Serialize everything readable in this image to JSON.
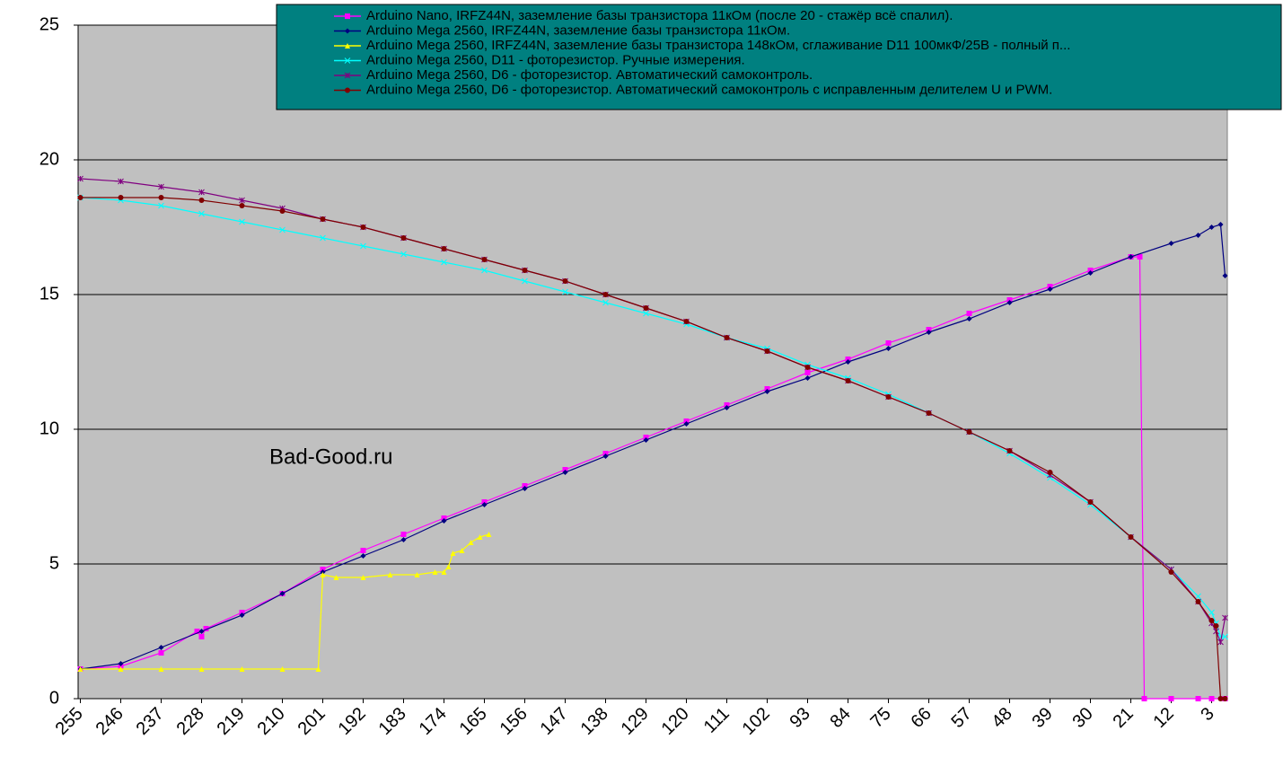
{
  "chart_data": {
    "type": "line",
    "xlim": [
      255.5,
      -0.5
    ],
    "xticks": [
      255,
      246,
      237,
      228,
      219,
      210,
      201,
      192,
      183,
      174,
      165,
      156,
      147,
      138,
      129,
      120,
      111,
      102,
      93,
      84,
      75,
      66,
      57,
      48,
      39,
      30,
      21,
      12,
      3
    ],
    "ylim": [
      0,
      25
    ],
    "yticks": [
      0,
      5,
      10,
      15,
      20,
      25
    ],
    "grid": true,
    "legend": "top-right",
    "annotation": "Bad-Good.ru",
    "series": [
      {
        "name": "Arduino Nano, IRFZ44N, заземление базы транзистора 11кОм (после 20 - стажёр всё спалил).",
        "color": "#ff00ff",
        "marker": "square",
        "x": [
          255,
          246,
          237,
          229,
          228,
          227,
          219,
          210,
          201,
          192,
          183,
          174,
          165,
          156,
          147,
          138,
          129,
          120,
          111,
          102,
          93,
          84,
          75,
          66,
          57,
          48,
          39,
          30,
          21,
          19,
          18,
          12,
          6,
          3,
          0
        ],
        "values": [
          1.1,
          1.2,
          1.7,
          2.5,
          2.3,
          2.6,
          3.2,
          3.9,
          4.8,
          5.5,
          6.1,
          6.7,
          7.3,
          7.9,
          8.5,
          9.1,
          9.7,
          10.3,
          10.9,
          11.5,
          12.1,
          12.6,
          13.2,
          13.7,
          14.3,
          14.8,
          15.3,
          15.9,
          16.4,
          16.4,
          0,
          0,
          0,
          0,
          0
        ]
      },
      {
        "name": "Arduino Mega 2560, IRFZ44N, заземление базы транзистора 11кОм.",
        "color": "#000080",
        "marker": "diamond",
        "x": [
          255,
          246,
          237,
          228,
          219,
          210,
          201,
          192,
          183,
          174,
          165,
          156,
          147,
          138,
          129,
          120,
          111,
          102,
          93,
          84,
          75,
          66,
          57,
          48,
          39,
          30,
          21,
          12,
          6,
          3,
          1,
          0
        ],
        "values": [
          1.1,
          1.3,
          1.9,
          2.5,
          3.1,
          3.9,
          4.7,
          5.3,
          5.9,
          6.6,
          7.2,
          7.8,
          8.4,
          9.0,
          9.6,
          10.2,
          10.8,
          11.4,
          11.9,
          12.5,
          13.0,
          13.6,
          14.1,
          14.7,
          15.2,
          15.8,
          16.4,
          16.9,
          17.2,
          17.5,
          17.6,
          15.7
        ]
      },
      {
        "name": "Arduino Mega 2560, IRFZ44N, заземление базы транзистора 148кОм, сглаживание D11 100мкФ/25В - полный п...",
        "color": "#ffff00",
        "marker": "triangle",
        "x": [
          255,
          246,
          237,
          228,
          219,
          210,
          202,
          201,
          198,
          192,
          186,
          180,
          176,
          174,
          173,
          172,
          170,
          168,
          166,
          164
        ],
        "values": [
          1.1,
          1.1,
          1.1,
          1.1,
          1.1,
          1.1,
          1.1,
          4.6,
          4.5,
          4.5,
          4.6,
          4.6,
          4.7,
          4.7,
          4.9,
          5.4,
          5.5,
          5.8,
          6.0,
          6.1
        ]
      },
      {
        "name": "Arduino Mega 2560, D11 - фоторезистор. Ручные измерения.",
        "color": "#00ffff",
        "marker": "x",
        "x": [
          255,
          246,
          237,
          228,
          219,
          210,
          201,
          192,
          183,
          174,
          165,
          156,
          147,
          138,
          129,
          120,
          111,
          102,
          93,
          84,
          75,
          66,
          57,
          48,
          39,
          30,
          21,
          12,
          6,
          3,
          2,
          1,
          0
        ],
        "values": [
          18.6,
          18.5,
          18.3,
          18.0,
          17.7,
          17.4,
          17.1,
          16.8,
          16.5,
          16.2,
          15.9,
          15.5,
          15.1,
          14.7,
          14.3,
          13.9,
          13.4,
          13.0,
          12.4,
          11.9,
          11.3,
          10.6,
          9.9,
          9.1,
          8.2,
          7.2,
          6.0,
          4.8,
          3.8,
          3.2,
          2.8,
          2.3,
          2.3
        ]
      },
      {
        "name": "Arduino Mega 2560, D6 - фоторезистор. Автоматический самоконтроль.",
        "color": "#800080",
        "marker": "star",
        "x": [
          255,
          246,
          237,
          228,
          219,
          210,
          201,
          192,
          183,
          174,
          165,
          156,
          147,
          138,
          129,
          120,
          111,
          102,
          93,
          84,
          75,
          66,
          57,
          48,
          39,
          30,
          21,
          12,
          6,
          3,
          2,
          1,
          0
        ],
        "values": [
          19.3,
          19.2,
          19.0,
          18.8,
          18.5,
          18.2,
          17.8,
          17.5,
          17.1,
          16.7,
          16.3,
          15.9,
          15.5,
          15.0,
          14.5,
          14.0,
          13.4,
          12.9,
          12.3,
          11.8,
          11.2,
          10.6,
          9.9,
          9.2,
          8.3,
          7.3,
          6.0,
          4.8,
          3.6,
          2.8,
          2.5,
          2.1,
          3.0
        ]
      },
      {
        "name": "Arduino Mega 2560, D6 - фоторезистор. Автоматический самоконтроль с исправленным делителем U и PWM.",
        "color": "#800000",
        "marker": "circle",
        "x": [
          255,
          246,
          237,
          228,
          219,
          210,
          201,
          192,
          183,
          174,
          165,
          156,
          147,
          138,
          129,
          120,
          111,
          102,
          93,
          84,
          75,
          66,
          57,
          48,
          39,
          30,
          21,
          12,
          6,
          3,
          2,
          1,
          0
        ],
        "values": [
          18.6,
          18.6,
          18.6,
          18.5,
          18.3,
          18.1,
          17.8,
          17.5,
          17.1,
          16.7,
          16.3,
          15.9,
          15.5,
          15.0,
          14.5,
          14.0,
          13.4,
          12.9,
          12.3,
          11.8,
          11.2,
          10.6,
          9.9,
          9.2,
          8.4,
          7.3,
          6.0,
          4.7,
          3.6,
          2.9,
          2.7,
          0,
          0
        ]
      }
    ]
  }
}
